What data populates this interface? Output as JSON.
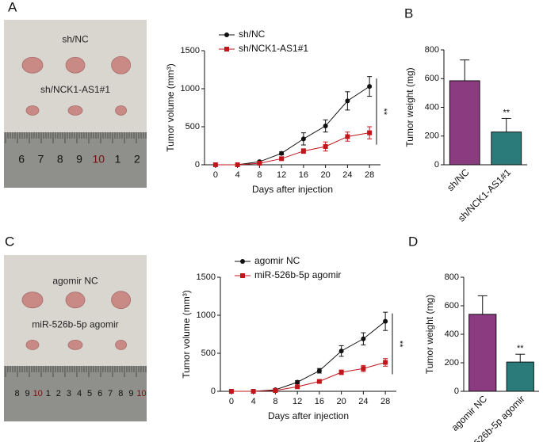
{
  "panel_labels": [
    "A",
    "B",
    "C",
    "D"
  ],
  "photos": [
    {
      "labels": [
        "sh/NC",
        "sh/NCK1-AS1#1"
      ],
      "ruler": [
        "6",
        "7",
        "8",
        "9",
        "10",
        "1",
        "2"
      ]
    },
    {
      "labels": [
        "agomir NC",
        "miR-526b-5p agomir"
      ],
      "ruler": [
        "8",
        "9",
        "10",
        "1",
        "2",
        "3",
        "4",
        "5",
        "6",
        "7",
        "8",
        "9",
        "10"
      ]
    }
  ],
  "chart_data": [
    {
      "type": "line",
      "x_label": "Days after injection",
      "y_label": "Tumor volume (mm³)",
      "x": [
        0,
        4,
        8,
        12,
        16,
        20,
        24,
        28
      ],
      "xlim": [
        -2,
        30
      ],
      "xticks": [
        0,
        4,
        8,
        12,
        16,
        20,
        24,
        28
      ],
      "ylim": [
        0,
        1500
      ],
      "yticks": [
        0,
        500,
        1000,
        1500
      ],
      "legend": "top-left",
      "annotation": "**",
      "series": [
        {
          "name": "sh/NC",
          "color": "#111111",
          "marker": "circle",
          "values": [
            0,
            0,
            40,
            150,
            340,
            510,
            840,
            1030
          ],
          "errors": [
            0,
            0,
            10,
            20,
            80,
            80,
            120,
            130
          ]
        },
        {
          "name": "sh/NCK1-AS1#1",
          "color": "#c0171d",
          "marker": "square",
          "values": [
            0,
            0,
            20,
            80,
            180,
            240,
            370,
            420
          ],
          "errors": [
            0,
            0,
            10,
            15,
            30,
            60,
            60,
            80
          ]
        }
      ]
    },
    {
      "type": "bar",
      "y_label": "Tumor weight (mg)",
      "categories": [
        "sh/NC",
        "sh/NCK1-AS1#1"
      ],
      "values": [
        585,
        228
      ],
      "errors": [
        145,
        95
      ],
      "colors": [
        "#8b3b7f",
        "#2b7b7b"
      ],
      "ylim": [
        0,
        800
      ],
      "yticks": [
        0,
        200,
        400,
        600,
        800
      ],
      "annotation": "**"
    },
    {
      "type": "line",
      "x_label": "Days after injection",
      "y_label": "Tumor volume (mm³)",
      "x": [
        0,
        4,
        8,
        12,
        16,
        20,
        24,
        28
      ],
      "xlim": [
        -2,
        30
      ],
      "xticks": [
        0,
        4,
        8,
        12,
        16,
        20,
        24,
        28
      ],
      "ylim": [
        0,
        1500
      ],
      "yticks": [
        0,
        500,
        1000,
        1500
      ],
      "legend": "top-left",
      "annotation": "**",
      "series": [
        {
          "name": "agomir NC",
          "color": "#111111",
          "marker": "circle",
          "values": [
            0,
            0,
            20,
            120,
            270,
            530,
            690,
            920
          ],
          "errors": [
            0,
            0,
            10,
            20,
            30,
            70,
            80,
            120
          ]
        },
        {
          "name": "miR-526b-5p agomir",
          "color": "#c0171d",
          "marker": "square",
          "values": [
            0,
            0,
            10,
            60,
            130,
            250,
            300,
            380
          ],
          "errors": [
            0,
            0,
            5,
            15,
            15,
            30,
            40,
            50
          ]
        }
      ]
    },
    {
      "type": "bar",
      "y_label": "Tumor weight (mg)",
      "categories": [
        "agomir NC",
        "miR-526b-5p agomir"
      ],
      "values": [
        540,
        205
      ],
      "errors": [
        130,
        55
      ],
      "colors": [
        "#8b3b7f",
        "#2b7b7b"
      ],
      "ylim": [
        0,
        800
      ],
      "yticks": [
        0,
        200,
        400,
        600,
        800
      ],
      "annotation": "**"
    }
  ]
}
